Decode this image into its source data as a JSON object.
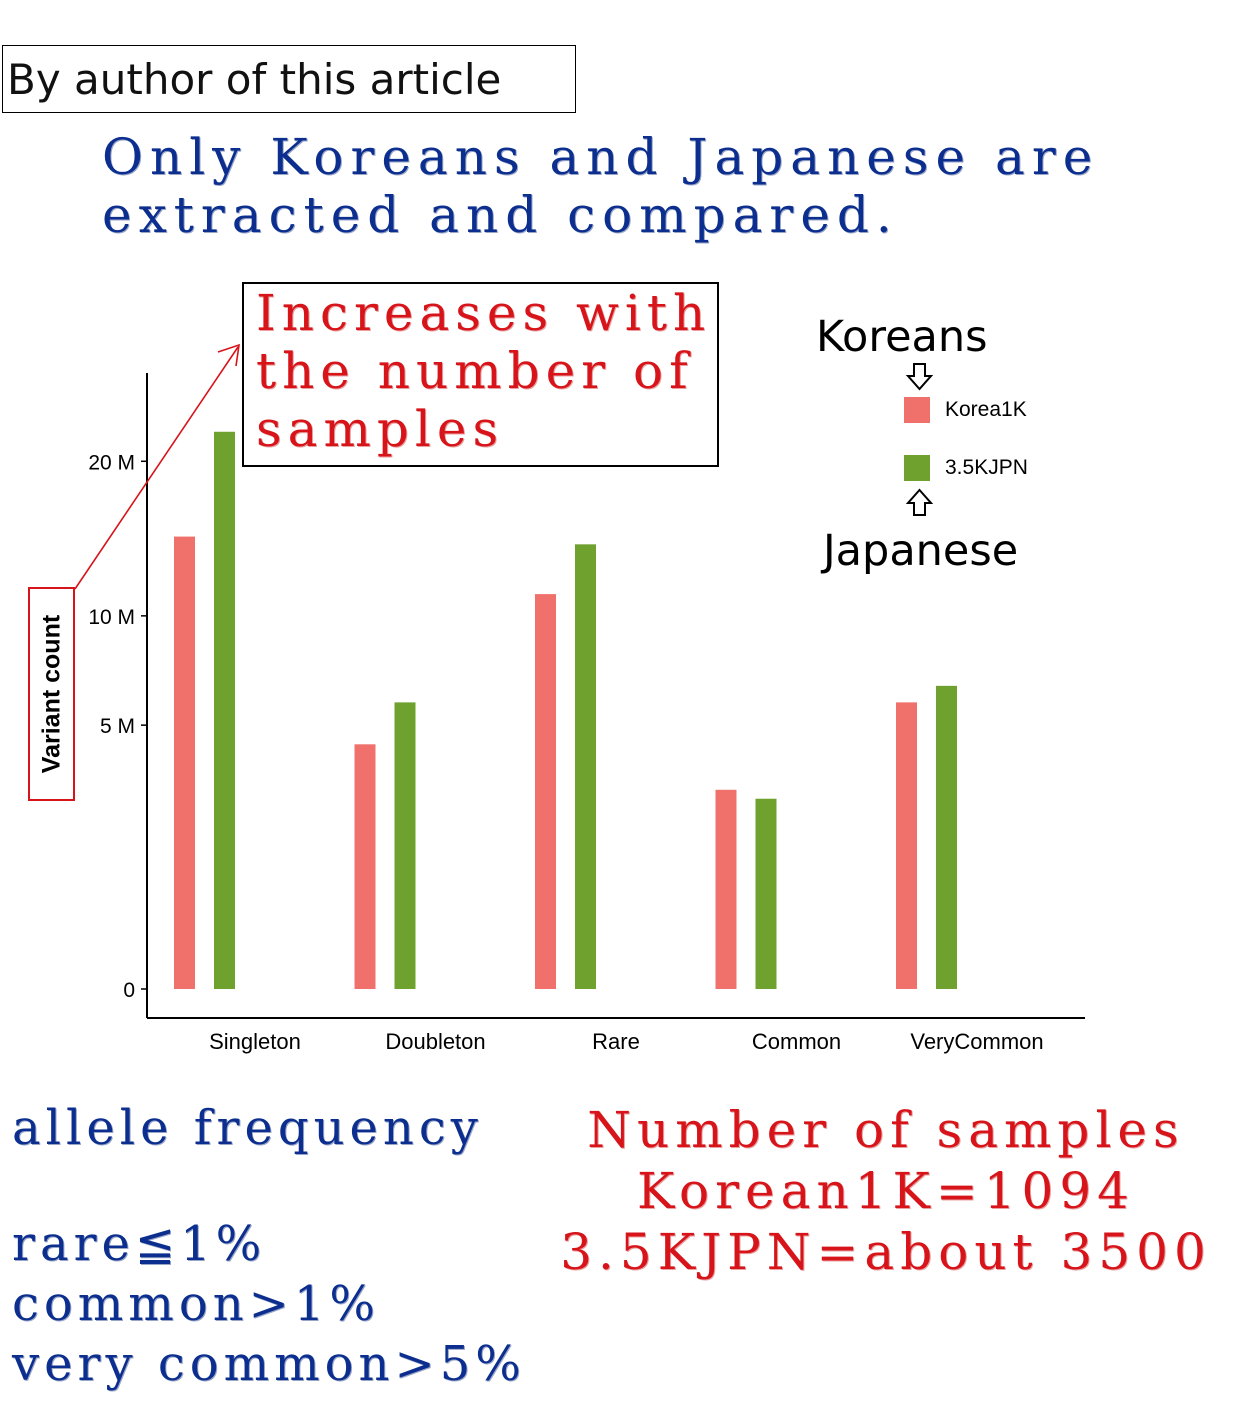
{
  "credit_label": "By author of this article",
  "headline": [
    "Only Koreans and Japanese are",
    "extracted and compared."
  ],
  "callout": [
    "Increases with",
    "the number of",
    "samples"
  ],
  "legend_annotations": {
    "top": "Koreans",
    "bottom": "Japanese"
  },
  "freq_notes": {
    "title": "allele frequency",
    "lines": [
      "rare≦1%",
      "common>1%",
      "very common>5%"
    ]
  },
  "sample_notes": [
    "Number of samples",
    "Korean1K=1094",
    "3.5KJPN=about 3500"
  ],
  "colors": {
    "korea": "#f0706b",
    "jpn": "#6ea12e",
    "accent_red": "#d7141a",
    "accent_blue": "#0c2f8f"
  },
  "chart_data": {
    "type": "bar",
    "categories": [
      "Singleton",
      "Doubleton",
      "Rare",
      "Common",
      "VeryCommon"
    ],
    "series": [
      {
        "name": "Korea1K",
        "values": [
          14.7,
          4.3,
          11.2,
          2.85,
          5.9
        ]
      },
      {
        "name": "3.5KJPN",
        "values": [
          22.3,
          5.9,
          14.2,
          2.6,
          6.6
        ]
      }
    ],
    "xlabel": "",
    "ylabel": "Variant count",
    "y_ticks": [
      {
        "value": 0,
        "label": "0"
      },
      {
        "value": 5,
        "label": "5 M"
      },
      {
        "value": 10,
        "label": "10 M"
      },
      {
        "value": 20,
        "label": "20 M"
      }
    ],
    "y_scale": "square-root",
    "ylim": [
      0,
      24
    ],
    "grid": false,
    "legend_position": "top-right"
  }
}
